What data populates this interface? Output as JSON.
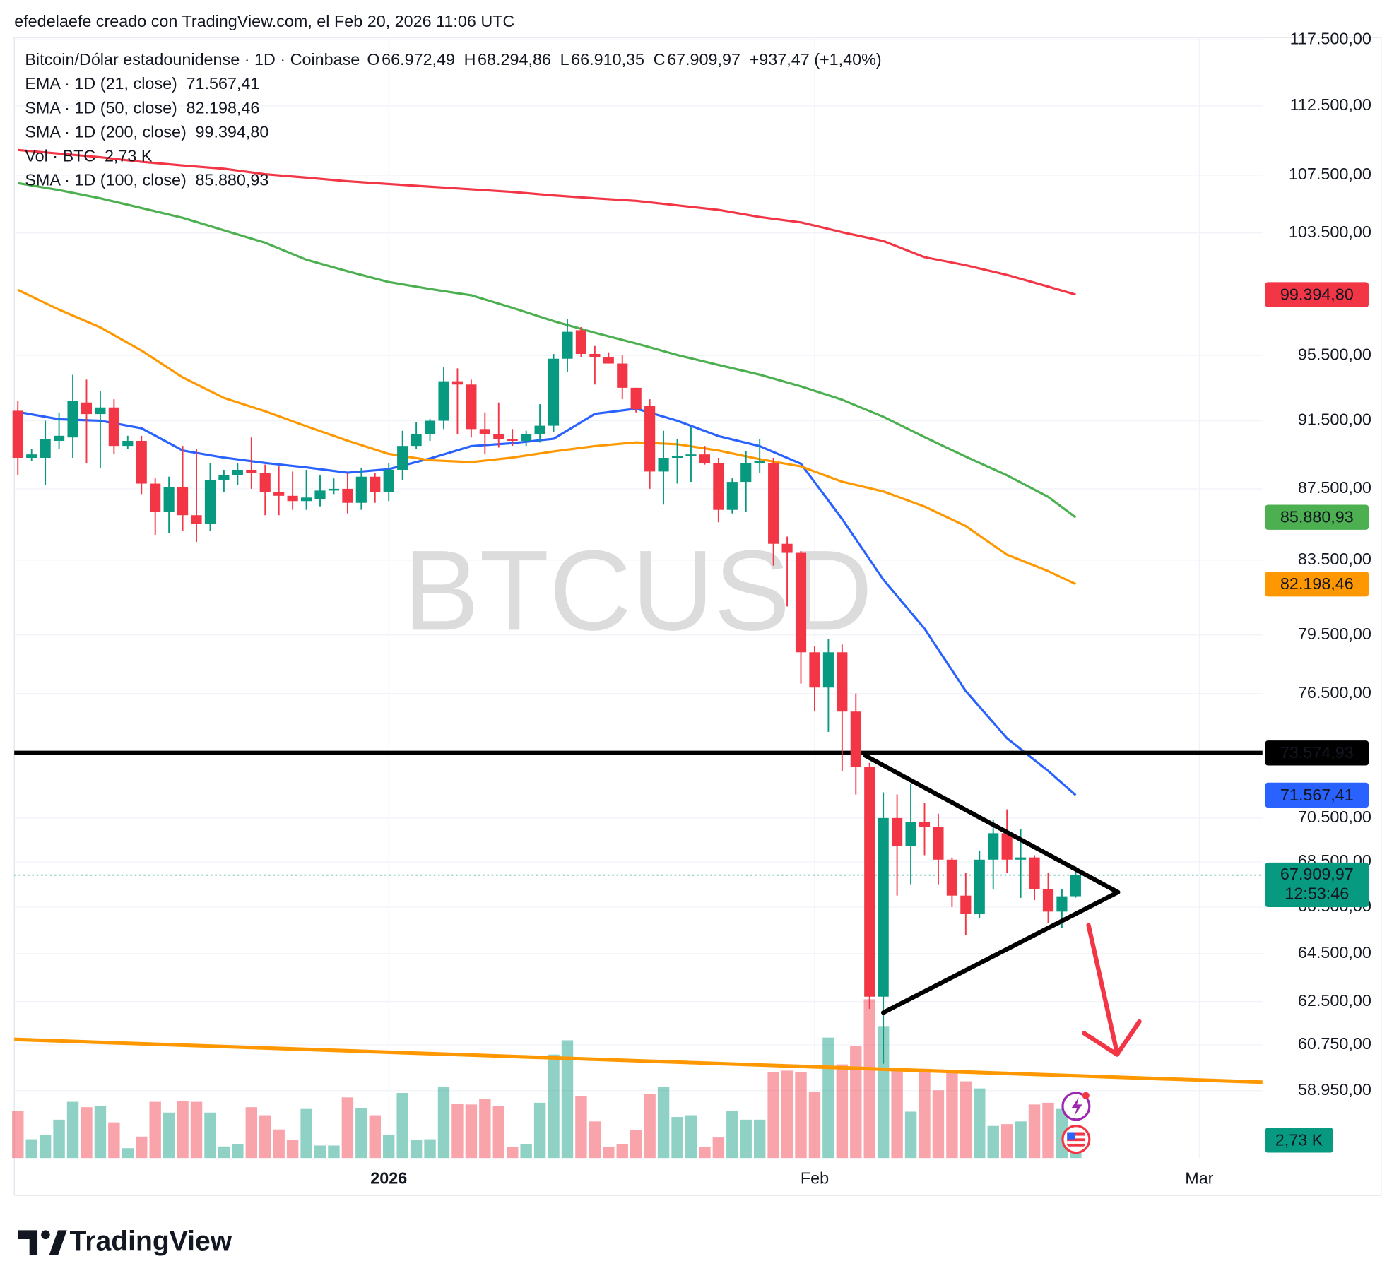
{
  "header": {
    "caption": "efedelaefe creado con TradingView.com, el Feb 20, 2026 11:06 UTC"
  },
  "chart_data": {
    "type": "candlestick",
    "symbol": "Bitcoin/Dólar estadounidense · 1D · Coinbase",
    "watermark": "BTCUSD",
    "ohlc_keys": [
      "O",
      "H",
      "L",
      "C"
    ],
    "ohlc_labels": [
      "66.972,49",
      "68.294,86",
      "66.910,35",
      "67.909,97"
    ],
    "change_label": "+937,47 (+1,40%)",
    "countdown": "12:53:46",
    "up_color": "#089981",
    "down_color": "#f23645",
    "log_scale": true,
    "grid": true,
    "open": [
      92100,
      89300,
      89300,
      90300,
      90500,
      92600,
      91900,
      92300,
      90000,
      90300,
      87800,
      86200,
      87600,
      86000,
      85500,
      88000,
      88300,
      88600,
      88400,
      87300,
      87100,
      86800,
      86900,
      87400,
      87500,
      86700,
      88200,
      87300,
      88600,
      90000,
      90700,
      91500,
      93900,
      93700,
      91000,
      90700,
      90400,
      90300,
      90700,
      91200,
      95300,
      97100,
      95600,
      95400,
      95000,
      93500,
      92400,
      88500,
      89300,
      89400,
      89500,
      89000,
      86300,
      87900,
      89000,
      89000,
      84400,
      83900,
      78600,
      76800,
      78600,
      75600,
      72900,
      62700,
      70500,
      69200,
      70300,
      70100,
      68600,
      67000,
      66200,
      68600,
      69800,
      68600,
      68700,
      67300,
      66300,
      66972.49
    ],
    "high": [
      92700,
      89800,
      91500,
      92000,
      94300,
      94000,
      93300,
      92800,
      90600,
      90600,
      88100,
      88200,
      90000,
      89800,
      89000,
      88600,
      89000,
      90500,
      88900,
      88800,
      88500,
      88600,
      88300,
      88100,
      88400,
      88700,
      88400,
      89000,
      90900,
      91400,
      91600,
      94800,
      94700,
      94000,
      92000,
      92600,
      91000,
      90900,
      92500,
      95600,
      97800,
      97300,
      96100,
      95700,
      95500,
      93500,
      92800,
      90900,
      90400,
      91100,
      90000,
      89300,
      88100,
      89700,
      90400,
      89300,
      84800,
      84000,
      78900,
      79300,
      79000,
      76500,
      73100,
      71700,
      71600,
      72100,
      71200,
      70700,
      68700,
      68000,
      69000,
      70400,
      70900,
      70000,
      68800,
      68000,
      67300,
      68294.86
    ],
    "low": [
      88300,
      89100,
      87700,
      89800,
      89300,
      89000,
      88700,
      89500,
      89800,
      87200,
      84900,
      85000,
      85100,
      84500,
      85100,
      87300,
      87700,
      87500,
      86000,
      86000,
      86300,
      86300,
      86500,
      87200,
      86100,
      86300,
      86700,
      86800,
      88000,
      89800,
      90300,
      91000,
      90700,
      90500,
      89500,
      89900,
      90000,
      90000,
      90200,
      90800,
      94500,
      95400,
      93700,
      95000,
      92800,
      92000,
      87500,
      86600,
      87800,
      87900,
      88900,
      85600,
      86100,
      86200,
      88400,
      83200,
      81000,
      77000,
      75600,
      74600,
      72700,
      71600,
      62200,
      60000,
      67000,
      67500,
      68800,
      67500,
      66500,
      65300,
      66000,
      67300,
      68000,
      66900,
      66800,
      65800,
      65600,
      66910.35
    ],
    "close": [
      89300,
      89500,
      90400,
      90600,
      92700,
      91900,
      92300,
      90000,
      90300,
      87800,
      86200,
      87600,
      86000,
      85500,
      88000,
      88300,
      88600,
      88400,
      87300,
      87100,
      86800,
      87000,
      87400,
      87500,
      86700,
      88200,
      87300,
      88600,
      90000,
      90700,
      91500,
      93900,
      93700,
      91000,
      90700,
      90400,
      90300,
      90700,
      91200,
      95300,
      97000,
      95600,
      95400,
      95000,
      93500,
      92200,
      88500,
      89300,
      89400,
      89500,
      89000,
      86300,
      87900,
      89000,
      89100,
      84400,
      83900,
      78600,
      76800,
      78600,
      75600,
      72900,
      62700,
      70500,
      69200,
      70300,
      70100,
      68600,
      67000,
      66200,
      68600,
      69800,
      68600,
      68700,
      67300,
      66300,
      66970,
      67909.97
    ],
    "ylim": [
      56400,
      117800
    ],
    "yticks": [
      {
        "value": 117500,
        "label": "117.500,00"
      },
      {
        "value": 112500,
        "label": "112.500,00"
      },
      {
        "value": 107500,
        "label": "107.500,00"
      },
      {
        "value": 103500,
        "label": "103.500,00"
      },
      {
        "value": 95500,
        "label": "95.500,00"
      },
      {
        "value": 91500,
        "label": "91.500,00"
      },
      {
        "value": 87500,
        "label": "87.500,00"
      },
      {
        "value": 83500,
        "label": "83.500,00"
      },
      {
        "value": 79500,
        "label": "79.500,00"
      },
      {
        "value": 76500,
        "label": "76.500,00"
      },
      {
        "value": 70500,
        "label": "70.500,00"
      },
      {
        "value": 68500,
        "label": "68.500,00"
      },
      {
        "value": 66500,
        "label": "66.500,00"
      },
      {
        "value": 64500,
        "label": "64.500,00"
      },
      {
        "value": 62500,
        "label": "62.500,00"
      },
      {
        "value": 60750,
        "label": "60.750,00"
      },
      {
        "value": 58950,
        "label": "58.950,00"
      }
    ],
    "xlim": [
      -0.26,
      90.6
    ],
    "xticks": [
      {
        "value": 27,
        "label": "2026"
      },
      {
        "value": 58,
        "label": "Feb"
      },
      {
        "value": 86,
        "label": "Mar"
      }
    ],
    "volume": {
      "name": "Vol · BTC",
      "value_label": "2,73 K",
      "values": [
        7230,
        2870,
        3550,
        5870,
        8600,
        7780,
        7920,
        5460,
        1500,
        3280,
        8600,
        6960,
        8740,
        8600,
        6960,
        1770,
        2180,
        7780,
        6550,
        4370,
        2730,
        7510,
        1910,
        1910,
        9280,
        7640,
        6550,
        3550,
        9960,
        2730,
        2870,
        10920,
        8330,
        8190,
        9010,
        7920,
        1640,
        2180,
        8460,
        15830,
        18020,
        9420,
        5600,
        1640,
        2180,
        4230,
        9830,
        10920,
        6280,
        6550,
        1640,
        3140,
        7230,
        5870,
        5870,
        13100,
        13380,
        13100,
        10100,
        18430,
        14330,
        17200,
        24300,
        20200,
        13650,
        7100,
        13650,
        10370,
        13380,
        11740,
        10650,
        4910,
        5190,
        5600,
        8190,
        8460,
        7510,
        2730
      ]
    },
    "indicators": {
      "x": [
        0,
        3,
        6,
        9,
        12,
        15,
        18,
        21,
        24,
        27,
        30,
        33,
        36,
        39,
        42,
        45,
        48,
        51,
        54,
        57,
        60,
        63,
        66,
        69,
        72,
        75,
        77
      ],
      "series": [
        {
          "name": "EMA · 1D (21, close)",
          "color": "#2962ff",
          "value_label": "71.567,41",
          "values": [
            92030,
            91590,
            91500,
            91050,
            89730,
            89310,
            89000,
            88740,
            88430,
            88640,
            89260,
            89990,
            90160,
            90420,
            91910,
            92230,
            91500,
            90580,
            89990,
            88950,
            85790,
            82440,
            79830,
            76630,
            74290,
            72710,
            71567.41
          ]
        },
        {
          "name": "SMA · 1D (50, close)",
          "color": "#ff9800",
          "value_label": "82.198,46",
          "values": [
            99700,
            98420,
            97280,
            95810,
            94140,
            92880,
            92070,
            91170,
            90310,
            89530,
            89160,
            89050,
            89310,
            89680,
            89990,
            90210,
            90100,
            89730,
            89220,
            88800,
            87910,
            87350,
            86490,
            85390,
            83800,
            82900,
            82198.46
          ]
        },
        {
          "name": "SMA · 1D (200, close)",
          "color": "#f23645",
          "value_label": "99.394,80",
          "values": [
            109290,
            109030,
            108770,
            108450,
            108190,
            107950,
            107570,
            107330,
            107070,
            106880,
            106690,
            106510,
            106320,
            106080,
            105880,
            105700,
            105390,
            105080,
            104590,
            104220,
            103550,
            102950,
            101870,
            101330,
            100690,
            99920,
            99394.8
          ]
        },
        {
          "name": "SMA · 1D (100, close)",
          "color": "#4caf50",
          "value_label": "85.880,93",
          "values": [
            106940,
            106450,
            105880,
            105210,
            104530,
            103680,
            102840,
            101700,
            100930,
            100220,
            99760,
            99350,
            98540,
            97680,
            96940,
            96260,
            95530,
            94910,
            94310,
            93590,
            92770,
            91740,
            90520,
            89370,
            88280,
            87040,
            85880.93
          ]
        }
      ]
    },
    "level": {
      "value": 73574.93,
      "label": "73.574,93",
      "color": "#000000"
    }
  },
  "footer": {
    "brand": "TradingView"
  }
}
